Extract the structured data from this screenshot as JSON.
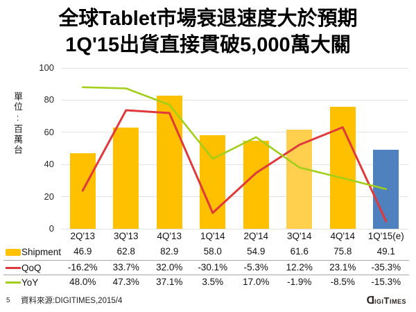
{
  "title": {
    "line1": "全球Tablet市場衰退速度大於預期",
    "line2": "1Q'15出貨直接貫破5,000萬大關"
  },
  "chart_data": {
    "type": "bar+line combo",
    "unit_label": "單位:百萬台",
    "categories": [
      "2Q'13",
      "3Q'13",
      "4Q'13",
      "1Q'14",
      "2Q'14",
      "3Q'14",
      "4Q'14",
      "1Q'15(e)"
    ],
    "series": [
      {
        "name": "Shipment",
        "type": "bar",
        "values": [
          46.9,
          62.8,
          82.9,
          58.0,
          54.9,
          61.6,
          75.8,
          49.1
        ]
      },
      {
        "name": "QoQ",
        "type": "line",
        "color": "#e0393b",
        "values_pct": [
          -16.2,
          33.7,
          32.0,
          -30.1,
          -5.3,
          12.2,
          23.1,
          -35.3
        ]
      },
      {
        "name": "YoY",
        "type": "line",
        "color": "#a1ce18",
        "values_pct": [
          48.0,
          47.3,
          37.1,
          3.5,
          17.0,
          -1.9,
          -8.5,
          -15.3
        ]
      }
    ],
    "bar_colors": [
      "#FFC000",
      "#FFC000",
      "#FFC000",
      "#FFC000",
      "#FFC000",
      "#FFCF4D",
      "#FFC000",
      "#4E81BD"
    ],
    "y_ticks": [
      100,
      80,
      60,
      40,
      20,
      0
    ],
    "ylim": [
      0,
      100
    ],
    "line_axis_offset": 40,
    "grid": true,
    "legend_position": "table-left"
  },
  "table": {
    "rows": [
      {
        "label": "Shipment",
        "swatch": "bar-orange",
        "values": [
          "46.9",
          "62.8",
          "82.9",
          "58.0",
          "54.9",
          "61.6",
          "75.8",
          "49.1"
        ]
      },
      {
        "label": "QoQ",
        "swatch": "line-red",
        "values": [
          "-16.2%",
          "33.7%",
          "32.0%",
          "-30.1%",
          "-5.3%",
          "12.2%",
          "23.1%",
          "-35.3%"
        ]
      },
      {
        "label": "YoY",
        "swatch": "line-green",
        "values": [
          "48.0%",
          "47.3%",
          "37.1%",
          "3.5%",
          "17.0%",
          "-1.9%",
          "-8.5%",
          "-15.3%"
        ]
      }
    ]
  },
  "footer": {
    "page_number": "5",
    "source_text": "資料來源:DIGITIMES,2015/4",
    "logo_text": "DIGITIMES"
  },
  "colors": {
    "bar_orange": "#FFC000",
    "bar_orange_light": "#FFCF4D",
    "bar_blue": "#4E81BD",
    "qoq_red": "#e0393b",
    "yoy_green": "#a1ce18",
    "gridline": "#e2e2e2",
    "separator": "#a6a6a6"
  }
}
